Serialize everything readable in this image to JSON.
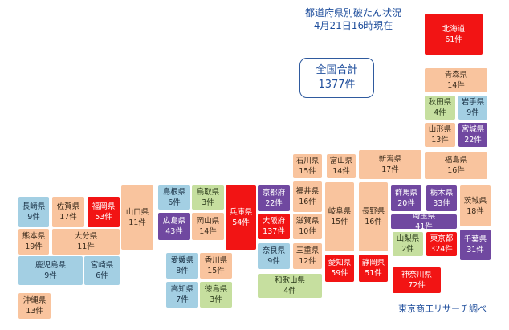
{
  "title_line1": "都道府県別破たん状況",
  "title_line2": "4月21日16時現在",
  "total_label": "全国合計",
  "total_value": "1377件",
  "credit": "東京商工リサーチ調べ",
  "colors": {
    "orange": "#f9c49e",
    "green": "#c6df9f",
    "blue": "#a3cfe3",
    "purple": "#7048a0",
    "red": "#f21414"
  },
  "prefectures": [
    {
      "key": "hokkaido",
      "name": "北海道",
      "count": "61件",
      "color": "red"
    },
    {
      "key": "aomori",
      "name": "青森県",
      "count": "14件",
      "color": "orange"
    },
    {
      "key": "akita",
      "name": "秋田県",
      "count": "4件",
      "color": "green"
    },
    {
      "key": "iwate",
      "name": "岩手県",
      "count": "9件",
      "color": "blue"
    },
    {
      "key": "yamagata",
      "name": "山形県",
      "count": "13件",
      "color": "orange"
    },
    {
      "key": "miyagi",
      "name": "宮城県",
      "count": "22件",
      "color": "purple"
    },
    {
      "key": "fukushima",
      "name": "福島県",
      "count": "16件",
      "color": "orange"
    },
    {
      "key": "ishikawa",
      "name": "石川県",
      "count": "15件",
      "color": "orange"
    },
    {
      "key": "toyama",
      "name": "富山県",
      "count": "14件",
      "color": "orange"
    },
    {
      "key": "niigata",
      "name": "新潟県",
      "count": "17件",
      "color": "orange"
    },
    {
      "key": "nagasaki",
      "name": "長崎県",
      "count": "9件",
      "color": "blue"
    },
    {
      "key": "saga",
      "name": "佐賀県",
      "count": "17件",
      "color": "orange"
    },
    {
      "key": "fukuoka",
      "name": "福岡県",
      "count": "53件",
      "color": "red"
    },
    {
      "key": "yamaguchi",
      "name": "山口県",
      "count": "11件",
      "color": "orange"
    },
    {
      "key": "shimane",
      "name": "島根県",
      "count": "6件",
      "color": "blue"
    },
    {
      "key": "tottori",
      "name": "鳥取県",
      "count": "3件",
      "color": "green"
    },
    {
      "key": "hyogo",
      "name": "兵庫県",
      "count": "54件",
      "color": "red"
    },
    {
      "key": "kyoto",
      "name": "京都府",
      "count": "22件",
      "color": "purple"
    },
    {
      "key": "fukui",
      "name": "福井県",
      "count": "16件",
      "color": "orange"
    },
    {
      "key": "gifu",
      "name": "岐阜県",
      "count": "15件",
      "color": "orange"
    },
    {
      "key": "nagano",
      "name": "長野県",
      "count": "16件",
      "color": "orange"
    },
    {
      "key": "gunma",
      "name": "群馬県",
      "count": "20件",
      "color": "purple"
    },
    {
      "key": "tochigi",
      "name": "栃木県",
      "count": "33件",
      "color": "purple"
    },
    {
      "key": "ibaraki",
      "name": "茨城県",
      "count": "18件",
      "color": "orange"
    },
    {
      "key": "kumamoto",
      "name": "熊本県",
      "count": "19件",
      "color": "orange"
    },
    {
      "key": "oita",
      "name": "大分県",
      "count": "11件",
      "color": "orange"
    },
    {
      "key": "hiroshima",
      "name": "広島県",
      "count": "43件",
      "color": "purple"
    },
    {
      "key": "okayama",
      "name": "岡山県",
      "count": "14件",
      "color": "orange"
    },
    {
      "key": "osaka",
      "name": "大阪府",
      "count": "137件",
      "color": "red"
    },
    {
      "key": "shiga",
      "name": "滋賀県",
      "count": "10件",
      "color": "orange"
    },
    {
      "key": "saitama",
      "name": "埼玉県",
      "count": "41件",
      "color": "purple"
    },
    {
      "key": "kagoshima",
      "name": "鹿児島県",
      "count": "9件",
      "color": "blue"
    },
    {
      "key": "miyazaki",
      "name": "宮崎県",
      "count": "6件",
      "color": "blue"
    },
    {
      "key": "nara",
      "name": "奈良県",
      "count": "9件",
      "color": "blue"
    },
    {
      "key": "mie",
      "name": "三重県",
      "count": "12件",
      "color": "orange"
    },
    {
      "key": "aichi",
      "name": "愛知県",
      "count": "59件",
      "color": "red"
    },
    {
      "key": "shizuoka",
      "name": "静岡県",
      "count": "51件",
      "color": "red"
    },
    {
      "key": "yamanashi",
      "name": "山梨県",
      "count": "2件",
      "color": "green"
    },
    {
      "key": "tokyo",
      "name": "東京都",
      "count": "324件",
      "color": "red"
    },
    {
      "key": "chiba",
      "name": "千葉県",
      "count": "31件",
      "color": "purple"
    },
    {
      "key": "ehime",
      "name": "愛媛県",
      "count": "8件",
      "color": "blue"
    },
    {
      "key": "kagawa",
      "name": "香川県",
      "count": "15件",
      "color": "orange"
    },
    {
      "key": "kochi",
      "name": "高知県",
      "count": "7件",
      "color": "blue"
    },
    {
      "key": "tokushima",
      "name": "徳島県",
      "count": "3件",
      "color": "green"
    },
    {
      "key": "wakayama",
      "name": "和歌山県",
      "count": "4件",
      "color": "green"
    },
    {
      "key": "kanagawa",
      "name": "神奈川県",
      "count": "72件",
      "color": "red"
    },
    {
      "key": "okinawa",
      "name": "沖縄県",
      "count": "13件",
      "color": "orange"
    }
  ]
}
